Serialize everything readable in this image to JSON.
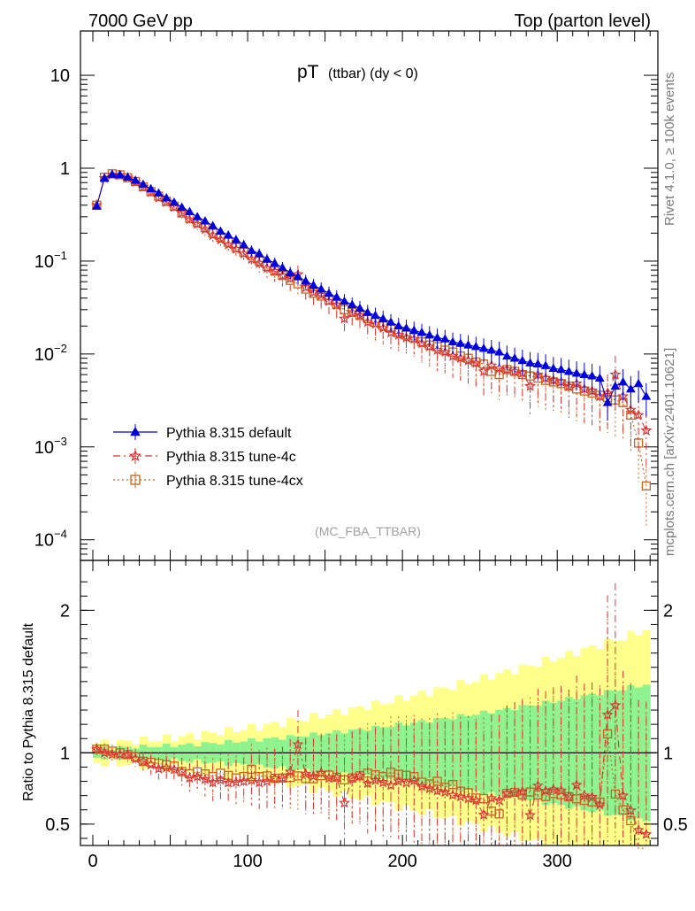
{
  "header": {
    "left_label": "7000 GeV pp",
    "right_label": "Top (parton level)"
  },
  "side_labels": {
    "rivet": "Rivet 4.1.0, ≥ 100k events",
    "mcplots": "mcplots.cern.ch [arXiv:2401.10621]"
  },
  "chart_data": [
    {
      "type": "line",
      "title_main": "pT",
      "title_sub": "(ttbar)  (dy < 0)",
      "reference_label": "(MC_FBA_TTBAR)",
      "xlabel": "",
      "ylabel": "",
      "yscale": "log",
      "xlim": [
        -8,
        365
      ],
      "ylim": [
        6e-05,
        30
      ],
      "y_ticks": [
        {
          "value": 10,
          "base": "10",
          "exp": ""
        },
        {
          "value": 1,
          "base": "1",
          "exp": ""
        },
        {
          "value": 0.1,
          "base": "10",
          "exp": "−1"
        },
        {
          "value": 0.01,
          "base": "10",
          "exp": "−2"
        },
        {
          "value": 0.001,
          "base": "10",
          "exp": "−3"
        },
        {
          "value": 0.0001,
          "base": "10",
          "exp": "−4"
        }
      ],
      "legend": [
        {
          "name": "Pythia 8.315 default",
          "color": "#0000dd",
          "marker": "triangle",
          "dash": ""
        },
        {
          "name": "Pythia 8.315 tune-4c",
          "color": "#dd3333",
          "marker": "star",
          "dash": "8,4,2,4"
        },
        {
          "name": "Pythia 8.315 tune-4cx",
          "color": "#c8641e",
          "marker": "square",
          "dash": "2,3"
        }
      ],
      "x": [
        2.5,
        7.5,
        12.5,
        17.5,
        22.5,
        27.5,
        32.5,
        37.5,
        42.5,
        47.5,
        52.5,
        57.5,
        62.5,
        67.5,
        72.5,
        77.5,
        82.5,
        87.5,
        92.5,
        97.5,
        102.5,
        107.5,
        112.5,
        117.5,
        122.5,
        127.5,
        132.5,
        137.5,
        142.5,
        147.5,
        152.5,
        157.5,
        162.5,
        167.5,
        172.5,
        177.5,
        182.5,
        187.5,
        192.5,
        197.5,
        202.5,
        207.5,
        212.5,
        217.5,
        222.5,
        227.5,
        232.5,
        237.5,
        242.5,
        247.5,
        252.5,
        257.5,
        262.5,
        267.5,
        272.5,
        277.5,
        282.5,
        287.5,
        292.5,
        297.5,
        302.5,
        307.5,
        312.5,
        317.5,
        322.5,
        327.5,
        332.5,
        337.5,
        342.5,
        347.5,
        352.5,
        357.5
      ],
      "series": [
        {
          "name": "Pythia 8.315 default",
          "values": [
            0.39,
            0.78,
            0.86,
            0.85,
            0.8,
            0.74,
            0.67,
            0.6,
            0.54,
            0.48,
            0.43,
            0.38,
            0.34,
            0.3,
            0.27,
            0.24,
            0.21,
            0.19,
            0.17,
            0.15,
            0.13,
            0.12,
            0.105,
            0.095,
            0.085,
            0.075,
            0.068,
            0.061,
            0.055,
            0.05,
            0.045,
            0.041,
            0.037,
            0.034,
            0.031,
            0.028,
            0.026,
            0.024,
            0.022,
            0.02,
            0.019,
            0.018,
            0.017,
            0.016,
            0.015,
            0.0145,
            0.0135,
            0.013,
            0.0125,
            0.012,
            0.0115,
            0.011,
            0.0105,
            0.0095,
            0.009,
            0.0085,
            0.008,
            0.0078,
            0.0075,
            0.007,
            0.0068,
            0.0065,
            0.0062,
            0.006,
            0.0058,
            0.0055,
            0.003,
            0.0045,
            0.005,
            0.0042,
            0.0048,
            0.0035
          ]
        },
        {
          "name": "Pythia 8.315 tune-4c",
          "values": [
            0.4,
            0.78,
            0.85,
            0.84,
            0.79,
            0.71,
            0.63,
            0.55,
            0.48,
            0.43,
            0.38,
            0.33,
            0.28,
            0.25,
            0.22,
            0.19,
            0.17,
            0.15,
            0.135,
            0.12,
            0.105,
            0.095,
            0.084,
            0.078,
            0.07,
            0.065,
            0.072,
            0.052,
            0.046,
            0.043,
            0.037,
            0.034,
            0.024,
            0.028,
            0.026,
            0.022,
            0.021,
            0.019,
            0.017,
            0.016,
            0.015,
            0.0145,
            0.013,
            0.012,
            0.011,
            0.0105,
            0.0095,
            0.009,
            0.0085,
            0.008,
            0.0065,
            0.0075,
            0.007,
            0.0068,
            0.0065,
            0.0062,
            0.0045,
            0.006,
            0.0055,
            0.0052,
            0.005,
            0.0045,
            0.0048,
            0.0042,
            0.004,
            0.0035,
            0.0038,
            0.006,
            0.0035,
            0.0025,
            0.0022,
            0.0015
          ]
        },
        {
          "name": "Pythia 8.315 tune-4cx",
          "values": [
            0.4,
            0.8,
            0.87,
            0.85,
            0.79,
            0.72,
            0.63,
            0.56,
            0.5,
            0.44,
            0.39,
            0.33,
            0.29,
            0.26,
            0.23,
            0.2,
            0.18,
            0.16,
            0.14,
            0.125,
            0.115,
            0.1,
            0.088,
            0.078,
            0.07,
            0.062,
            0.057,
            0.05,
            0.045,
            0.042,
            0.038,
            0.034,
            0.03,
            0.028,
            0.026,
            0.024,
            0.022,
            0.02,
            0.019,
            0.017,
            0.016,
            0.015,
            0.0135,
            0.0125,
            0.012,
            0.011,
            0.0105,
            0.0095,
            0.009,
            0.0082,
            0.0078,
            0.0065,
            0.006,
            0.0068,
            0.0065,
            0.006,
            0.0058,
            0.0055,
            0.0052,
            0.005,
            0.0048,
            0.0045,
            0.0042,
            0.004,
            0.0038,
            0.0036,
            0.0034,
            0.0032,
            0.003,
            0.0022,
            0.0011,
            0.00038
          ]
        }
      ]
    },
    {
      "type": "line",
      "xlabel": "",
      "ylabel": "Ratio to Pythia 8.315 default",
      "yscale": "linear",
      "xlim": [
        -8,
        365
      ],
      "ylim": [
        0.35,
        2.35
      ],
      "y_ticks": [
        {
          "value": 0.5,
          "label": "0.5"
        },
        {
          "value": 1,
          "label": "1"
        },
        {
          "value": 2,
          "label": "2"
        }
      ],
      "x_ticks": [
        {
          "value": 0,
          "label": "0"
        },
        {
          "value": 100,
          "label": "100"
        },
        {
          "value": 200,
          "label": "200"
        },
        {
          "value": 300,
          "label": "300"
        }
      ],
      "band_colors": {
        "inner": "#8ef38e",
        "outer": "#ffff8c"
      },
      "reference_line": 1
    }
  ]
}
